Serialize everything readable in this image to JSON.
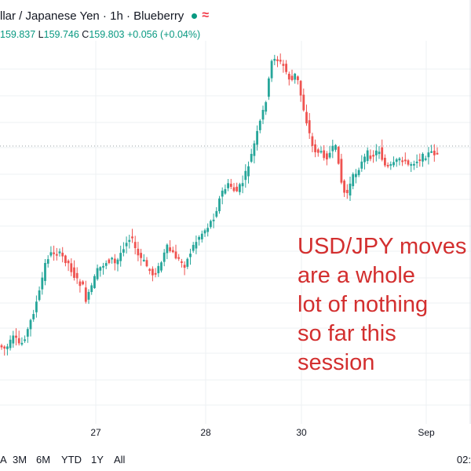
{
  "header": {
    "title": "llar / Japanese Yen · 1h · Blueberry",
    "status_dot_color": "#089981",
    "wave_glyph": "≈",
    "ohlc": {
      "open_value": "159.837",
      "low_key": "L",
      "low_value": "159.746",
      "close_key": "C",
      "close_value": "159.803",
      "change": "+0.056 (+0.04%)"
    }
  },
  "annotation": {
    "lines": [
      "USD/JPY moves",
      "are a whole",
      "lot of nothing",
      "so far this",
      "session"
    ],
    "color": "#d32f2f"
  },
  "footer": {
    "ranges": [
      "A",
      "3M",
      "6M",
      "YTD",
      "1Y",
      "All"
    ],
    "time_readout": "02:"
  },
  "chart_data": {
    "type": "candlestick",
    "x_tick_labels": [
      "27",
      "28",
      "30",
      "Sep"
    ],
    "up_color": "#26a69a",
    "down_color": "#ef5350",
    "grid": true,
    "candle_count": 151,
    "seed_candles_ohlc": [
      [
        159.2,
        159.4,
        159.05,
        159.3
      ],
      [
        159.3,
        159.55,
        159.15,
        159.45
      ],
      [
        159.45,
        159.6,
        159.25,
        159.35
      ],
      [
        159.35,
        159.45,
        159.1,
        159.2
      ]
    ]
  }
}
